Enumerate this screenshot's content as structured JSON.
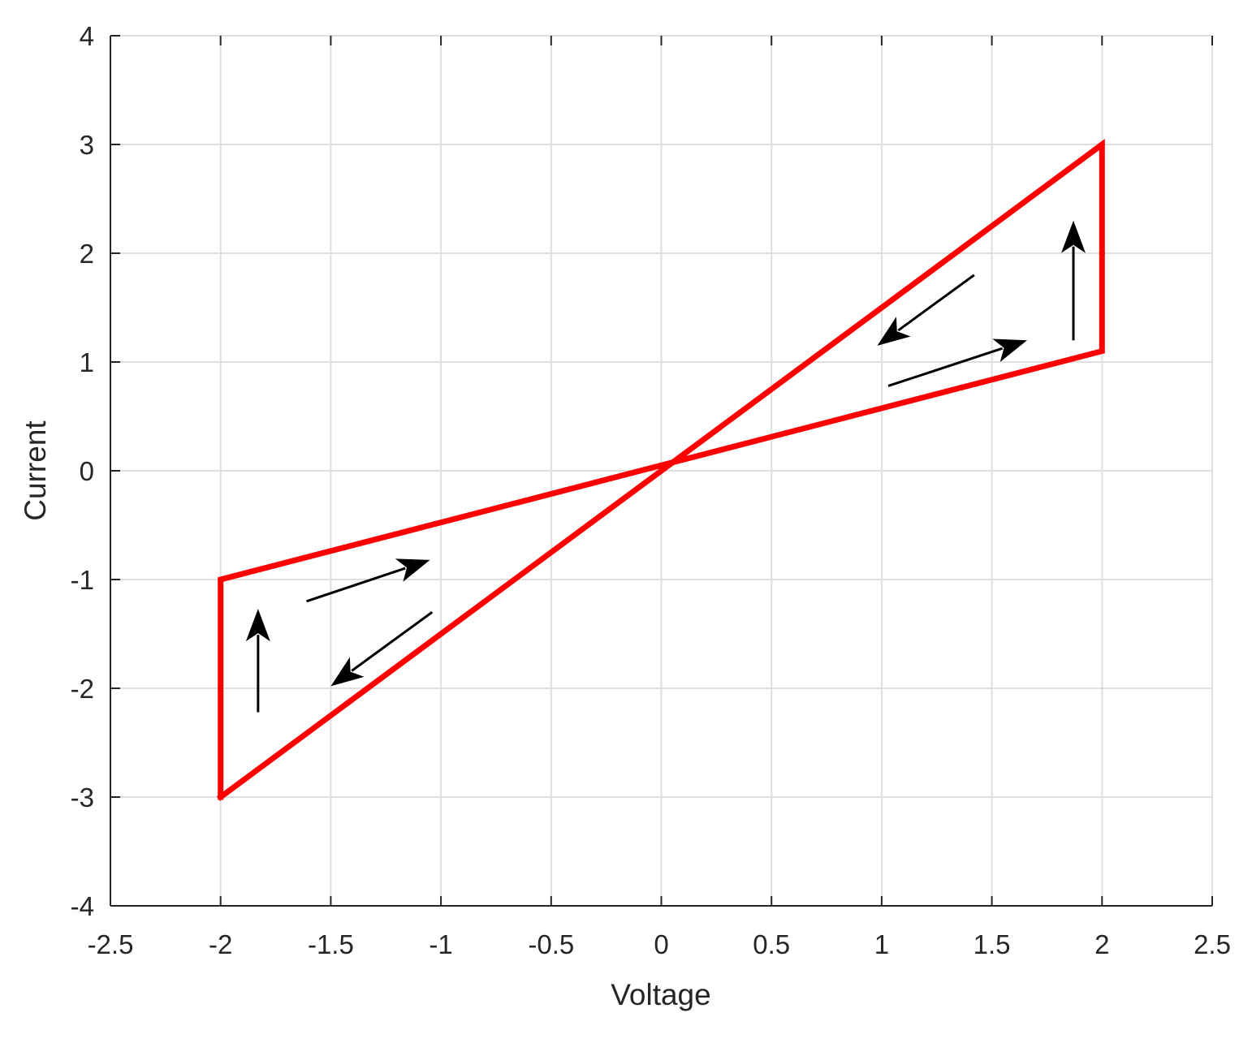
{
  "chart_data": {
    "type": "line",
    "xlabel": "Voltage",
    "ylabel": "Current",
    "xlim": [
      -2.5,
      2.5
    ],
    "ylim": [
      -4,
      4
    ],
    "grid": true,
    "xticks": [
      "-2.5",
      "-2",
      "-1.5",
      "-1",
      "-0.5",
      "0",
      "0.5",
      "1",
      "1.5",
      "2",
      "2.5"
    ],
    "yticks": [
      "-4",
      "-3",
      "-2",
      "-1",
      "0",
      "1",
      "2",
      "3",
      "4"
    ],
    "series": [
      {
        "color": "#ff0000",
        "x": [
          -2,
          -2,
          2,
          2,
          -2
        ],
        "y": [
          -3,
          -1,
          1.1,
          3,
          -3
        ]
      }
    ],
    "arrows": [
      {
        "x1": 1.42,
        "y1": 1.8,
        "x2": 0.98,
        "y2": 1.15
      },
      {
        "x1": 1.03,
        "y1": 0.78,
        "x2": 1.66,
        "y2": 1.2
      },
      {
        "x1": 1.87,
        "y1": 1.2,
        "x2": 1.87,
        "y2": 2.3
      },
      {
        "x1": -1.04,
        "y1": -1.3,
        "x2": -1.5,
        "y2": -1.98
      },
      {
        "x1": -1.61,
        "y1": -1.2,
        "x2": -1.05,
        "y2": -0.82
      },
      {
        "x1": -1.83,
        "y1": -2.22,
        "x2": -1.83,
        "y2": -1.27
      }
    ],
    "arrow_color": "#000000",
    "grid_color": "#dfdfdf",
    "axis_color": "#262626"
  }
}
